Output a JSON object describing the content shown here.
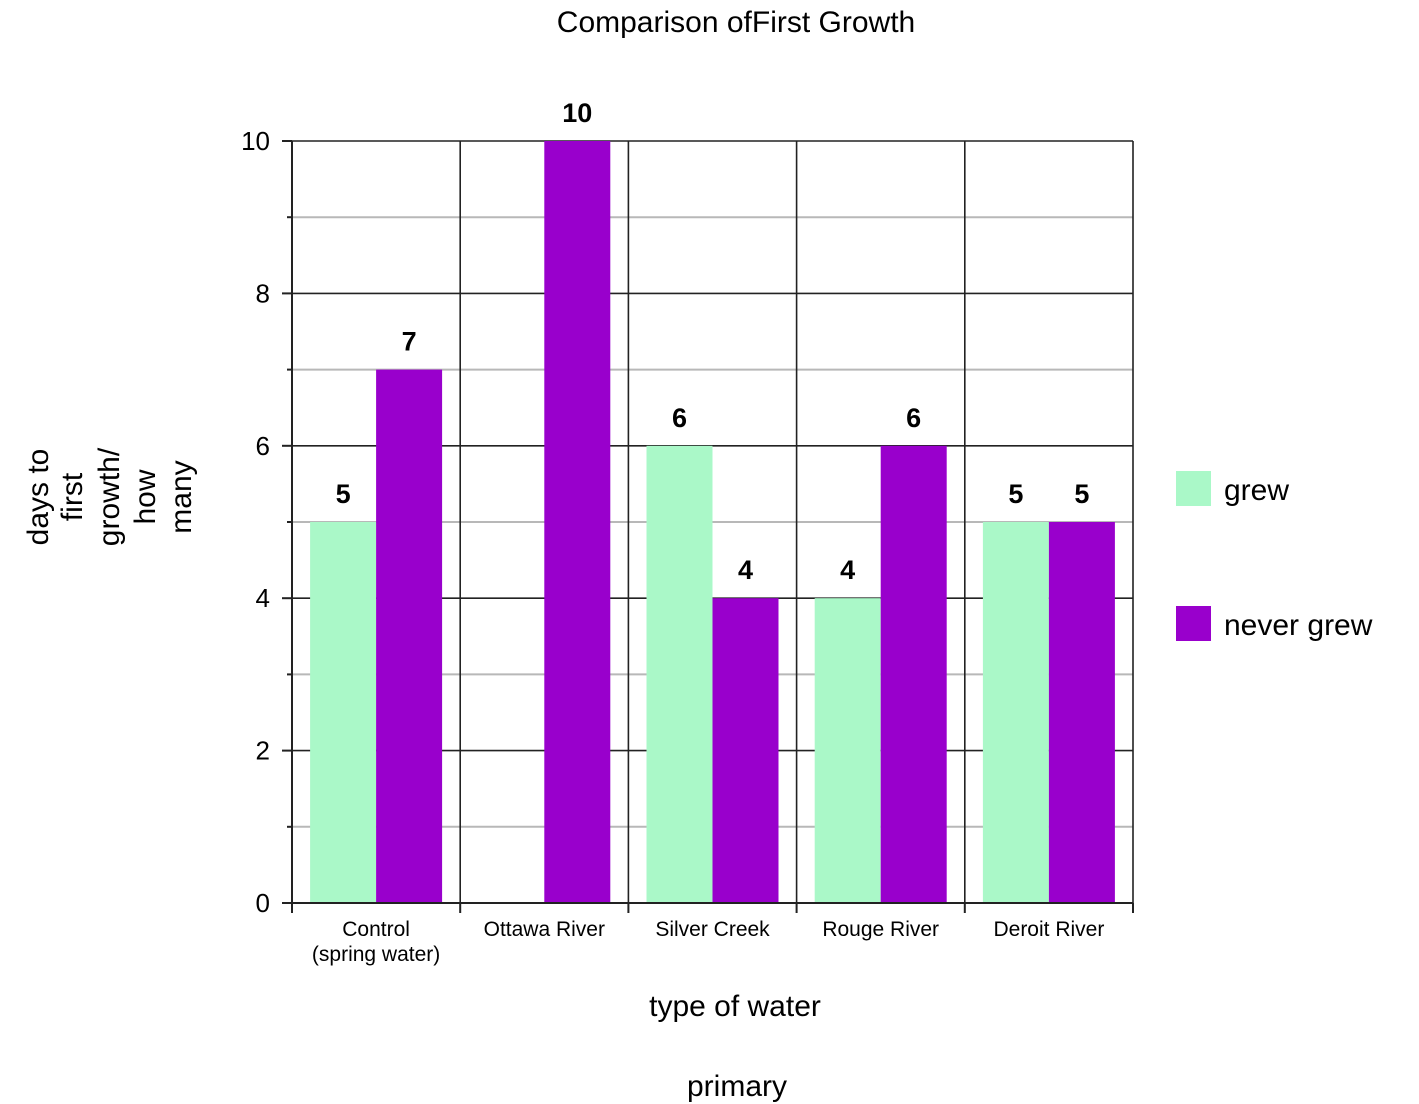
{
  "chart_data": {
    "type": "bar",
    "title": "Comparison ofFirst Growth",
    "xlabel": "type of water",
    "ylabel_lines": [
      "days to",
      "first",
      "growth/",
      "how",
      "many"
    ],
    "footer": "primary",
    "categories": [
      [
        "Control",
        "(spring water)"
      ],
      [
        "Ottawa River"
      ],
      [
        "Silver Creek"
      ],
      [
        "Rouge River"
      ],
      [
        "Deroit River"
      ]
    ],
    "series": [
      {
        "name": "grew",
        "color": "#aaf8c8",
        "values": [
          5,
          null,
          6,
          4,
          5
        ]
      },
      {
        "name": "never grew",
        "color": "#9900cc",
        "values": [
          7,
          10,
          4,
          6,
          5
        ]
      }
    ],
    "ylim": [
      0,
      10
    ],
    "yticks": [
      0,
      2,
      4,
      6,
      8,
      10
    ],
    "grid": true,
    "legend_position": "right"
  }
}
